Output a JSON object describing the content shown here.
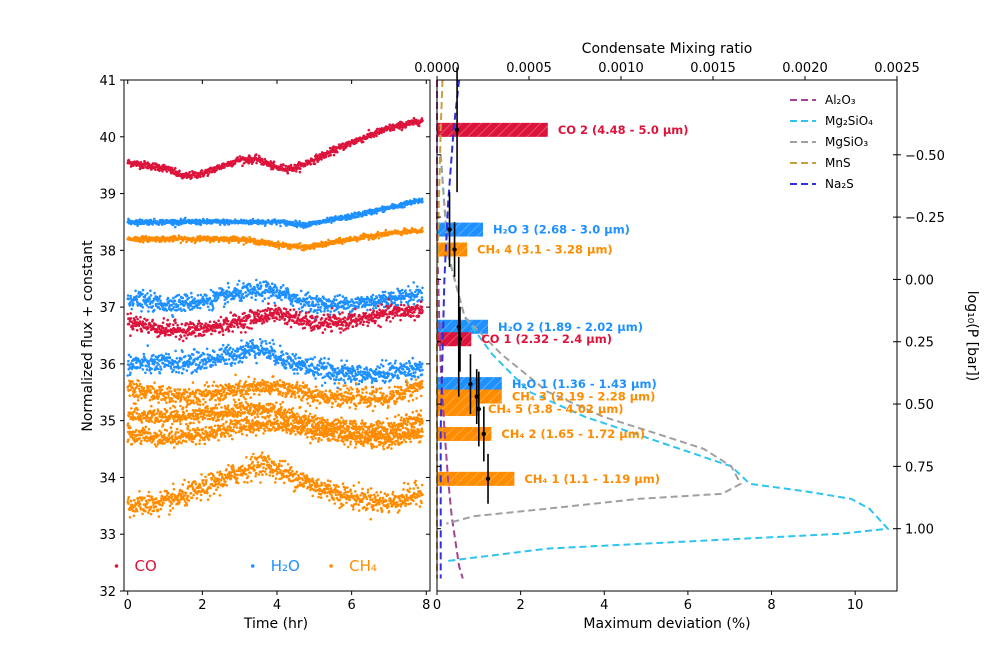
{
  "chart_data": [
    {
      "type": "scatter",
      "panel": "left",
      "xlabel": "Time (hr)",
      "ylabel": "Normalized flux + constant",
      "xlim": [
        -0.1,
        8.1
      ],
      "ylim": [
        32,
        41
      ],
      "xticks": [
        "0",
        "2",
        "4",
        "6",
        "8"
      ],
      "yticks": [
        "32",
        "33",
        "34",
        "35",
        "36",
        "37",
        "38",
        "39",
        "40",
        "41"
      ],
      "colors": {
        "CO": "#dc143c",
        "H2O": "#1e90ff",
        "CH4": "#ff8c00"
      },
      "legend": [
        {
          "key": "CO",
          "label": "CO",
          "color": "#dc143c"
        },
        {
          "key": "H2O",
          "label": "H₂O",
          "color": "#1e90ff"
        },
        {
          "key": "CH4",
          "label": "CH₄",
          "color": "#ff8c00"
        }
      ],
      "legend_position": "bottom",
      "series": [
        {
          "name": "CO 2",
          "color": "#dc143c",
          "x": [
            0,
            1,
            1.5,
            2,
            3,
            3.5,
            4,
            4.5,
            5,
            6,
            7,
            8
          ],
          "y": [
            39.55,
            39.45,
            39.3,
            39.35,
            39.6,
            39.6,
            39.45,
            39.45,
            39.6,
            39.9,
            40.15,
            40.3
          ],
          "scatter": 0.07
        },
        {
          "name": "H2O 3",
          "color": "#1e90ff",
          "x": [
            0,
            1,
            2,
            3,
            4,
            4.8,
            6,
            7,
            8
          ],
          "y": [
            38.5,
            38.5,
            38.5,
            38.5,
            38.5,
            38.45,
            38.6,
            38.75,
            38.9
          ],
          "scatter": 0.05
        },
        {
          "name": "CH4 4",
          "color": "#ff8c00",
          "x": [
            0,
            1,
            2,
            3,
            4,
            4.8,
            6,
            7,
            8
          ],
          "y": [
            38.2,
            38.2,
            38.2,
            38.2,
            38.1,
            38.05,
            38.2,
            38.3,
            38.35
          ],
          "scatter": 0.05
        },
        {
          "name": "H2O 2",
          "color": "#1e90ff",
          "x": [
            0,
            1,
            2,
            3,
            3.8,
            5,
            6,
            7,
            8
          ],
          "y": [
            37.15,
            37.05,
            37.1,
            37.25,
            37.3,
            37.05,
            37.05,
            37.15,
            37.25
          ],
          "scatter": 0.17
        },
        {
          "name": "CO 1",
          "color": "#dc143c",
          "x": [
            0,
            1,
            2,
            3,
            4,
            5,
            6,
            7,
            8
          ],
          "y": [
            36.75,
            36.6,
            36.6,
            36.75,
            36.9,
            36.7,
            36.75,
            36.9,
            36.95
          ],
          "scatter": 0.16
        },
        {
          "name": "H2O 1",
          "color": "#1e90ff",
          "x": [
            0,
            1,
            2,
            3,
            3.5,
            4.5,
            5.5,
            6.5,
            7,
            8
          ],
          "y": [
            36.0,
            36.0,
            36.05,
            36.2,
            36.3,
            36.0,
            35.85,
            35.8,
            35.85,
            35.95
          ],
          "scatter": 0.2
        },
        {
          "name": "CH4 3",
          "color": "#ff8c00",
          "x": [
            0,
            1,
            2,
            3,
            4,
            5,
            6,
            7,
            8
          ],
          "y": [
            35.55,
            35.45,
            35.45,
            35.55,
            35.6,
            35.45,
            35.4,
            35.4,
            35.65
          ],
          "scatter": 0.18
        },
        {
          "name": "CH4 5",
          "color": "#ff8c00",
          "x": [
            0,
            1,
            2,
            3,
            3.8,
            5,
            6,
            7,
            8
          ],
          "y": [
            35.1,
            35.05,
            35.1,
            35.2,
            35.2,
            34.95,
            34.85,
            34.85,
            35.05
          ],
          "scatter": 0.17
        },
        {
          "name": "CH4 2",
          "color": "#ff8c00",
          "x": [
            0,
            1,
            2,
            3,
            4,
            5,
            6,
            7,
            8
          ],
          "y": [
            34.75,
            34.7,
            34.75,
            34.9,
            34.95,
            34.8,
            34.7,
            34.65,
            34.8
          ],
          "scatter": 0.16
        },
        {
          "name": "CH4 1",
          "color": "#ff8c00",
          "x": [
            0,
            1,
            2,
            3,
            3.6,
            4.5,
            5,
            6,
            7,
            8
          ],
          "y": [
            33.5,
            33.55,
            33.8,
            34.1,
            34.25,
            34.0,
            33.85,
            33.65,
            33.55,
            33.75
          ],
          "scatter": 0.22
        }
      ]
    },
    {
      "type": "bar",
      "panel": "right",
      "orientation": "horizontal",
      "xlabel": "Maximum deviation (%)",
      "xlim": [
        0,
        11.0
      ],
      "xticks": [
        "0",
        "2",
        "4",
        "6",
        "8",
        "10"
      ],
      "ylabel_right": "log₁₀(P [bar])",
      "ylim_log10P": [
        1.25,
        -0.8
      ],
      "yticks_right": [
        "−0.50",
        "−0.25",
        "0.00",
        "0.25",
        "0.50",
        "0.75",
        "1.00"
      ],
      "x2label": "Condensate Mixing ratio",
      "x2lim": [
        0,
        0.0025
      ],
      "x2ticks": [
        "0.0000",
        "0.0005",
        "0.0010",
        "0.0015",
        "0.0020",
        "0.0025"
      ],
      "bars": [
        {
          "label": "CO 2 (4.48 - 5.0 μm)",
          "name": "CO 2",
          "color": "#dc143c",
          "value": 2.65,
          "log10P": -0.6,
          "err_x": 0.48,
          "err": 0.25
        },
        {
          "label": "H₂O 3 (2.68 - 3.0 μm)",
          "name": "H2O 3",
          "color": "#1e90ff",
          "value": 1.1,
          "log10P": -0.2,
          "err_x": 0.3,
          "err": 0.15
        },
        {
          "label": "CH₄ 4 (3.1 - 3.28 μm)",
          "name": "CH4 4",
          "color": "#ff8c00",
          "value": 0.72,
          "log10P": -0.12,
          "err_x": 0.42,
          "err": 0.11
        },
        {
          "label": "H₂O 2 (1.89 - 2.02 μm)",
          "name": "H2O 2",
          "color": "#1e90ff",
          "value": 1.22,
          "log10P": 0.19,
          "err_x": 0.52,
          "err": 0.28
        },
        {
          "label": "CO 1 (2.32 - 2.4 μm)",
          "name": "CO 1",
          "color": "#dc143c",
          "value": 0.82,
          "log10P": 0.24,
          "err_x": 0.55,
          "err": 0.13
        },
        {
          "label": "H₂O 1 (1.36 - 1.43 μm)",
          "name": "H2O 1",
          "color": "#1e90ff",
          "value": 1.55,
          "log10P": 0.42,
          "err_x": 0.8,
          "err": 0.12
        },
        {
          "label": "CH₄ 3 (2.19 - 2.28 μm)",
          "name": "CH4 3",
          "color": "#ff8c00",
          "value": 1.55,
          "log10P": 0.47,
          "err_x": 0.95,
          "err": 0.11
        },
        {
          "label": "CH₄ 5 (3.8 - 4.02 μm)",
          "name": "CH4 5",
          "color": "#ff8c00",
          "value": 0.98,
          "log10P": 0.52,
          "err_x": 1.0,
          "err": 0.15
        },
        {
          "label": "CH₄ 2 (1.65 - 1.72 μm)",
          "name": "CH4 2",
          "color": "#ff8c00",
          "value": 1.3,
          "log10P": 0.62,
          "err_x": 1.12,
          "err": 0.11
        },
        {
          "label": "CH₄ 1 (1.1 - 1.19 μm)",
          "name": "CH4 1",
          "color": "#ff8c00",
          "value": 1.85,
          "log10P": 0.8,
          "err_x": 1.22,
          "err": 0.1
        }
      ],
      "condensates": [
        {
          "label": "Al₂O₃",
          "name": "Al2O3",
          "color": "#a0449a",
          "mix": [
            0,
            0,
            0,
            1e-05,
            2e-05,
            4e-05,
            6e-05,
            8e-05,
            0.0001,
            0.00012,
            0.00014
          ],
          "log10P": [
            -0.8,
            -0.5,
            -0.2,
            0.1,
            0.35,
            0.6,
            0.8,
            0.95,
            1.05,
            1.15,
            1.2
          ]
        },
        {
          "label": "Mg₂SiO₄",
          "name": "Mg2SiO4",
          "color": "#2ec4f0",
          "mix": [
            2e-05,
            6e-05,
            0.00015,
            0.0003,
            0.0005,
            0.0008,
            0.0012,
            0.0016,
            0.0017,
            0.002,
            0.00225,
            0.00235,
            0.00245,
            0.0022,
            0.0014,
            0.0006,
            5e-05
          ],
          "log10P": [
            -0.5,
            -0.1,
            0.15,
            0.3,
            0.45,
            0.55,
            0.65,
            0.75,
            0.82,
            0.85,
            0.88,
            0.92,
            1.0,
            1.02,
            1.05,
            1.08,
            1.13
          ]
        },
        {
          "label": "MgSiO₃",
          "name": "MgSiO3",
          "color": "#a0a0a0",
          "mix": [
            2e-05,
            6e-05,
            0.00015,
            0.00035,
            0.0006,
            0.0009,
            0.0012,
            0.00145,
            0.0016,
            0.00165,
            0.00155,
            0.0011,
            0.0006,
            0.0002,
            5e-05
          ],
          "log10P": [
            -0.5,
            -0.1,
            0.15,
            0.3,
            0.45,
            0.55,
            0.62,
            0.68,
            0.75,
            0.82,
            0.86,
            0.88,
            0.92,
            0.95,
            0.98
          ]
        },
        {
          "label": "MnS",
          "name": "MnS",
          "color": "#c8a040",
          "mix": [
            3e-05,
            2e-05,
            1e-05,
            0,
            0,
            0,
            0,
            0
          ],
          "log10P": [
            -0.8,
            -0.6,
            -0.3,
            0,
            0.3,
            0.6,
            0.9,
            1.2
          ]
        },
        {
          "label": "Na₂S",
          "name": "Na2S",
          "color": "#3030e0",
          "mix": [
            0.00012,
            9e-05,
            6e-05,
            4e-05,
            3e-05,
            2e-05,
            2e-05,
            2e-05
          ],
          "log10P": [
            -0.8,
            -0.6,
            -0.3,
            0,
            0.3,
            0.6,
            0.9,
            1.2
          ]
        }
      ],
      "legend_position": "top-right"
    }
  ]
}
